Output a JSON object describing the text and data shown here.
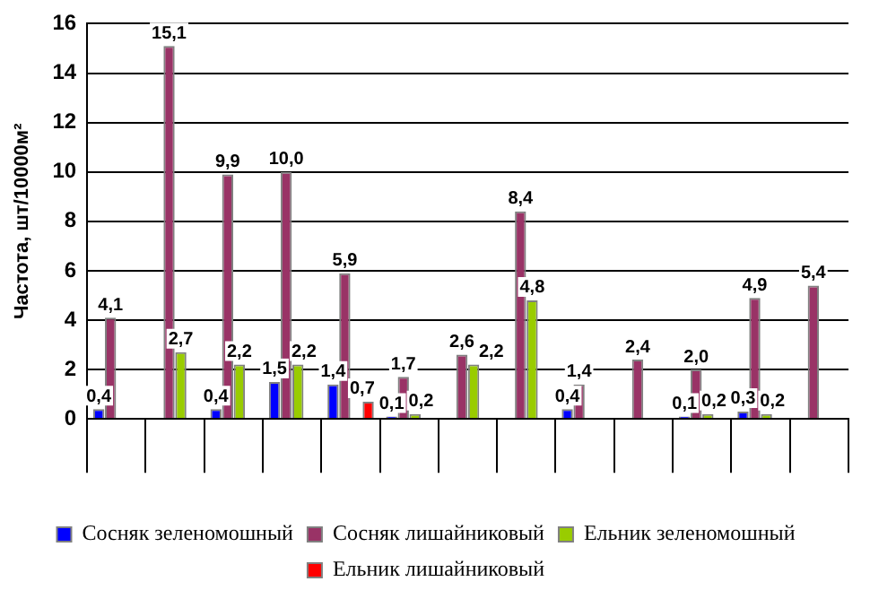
{
  "chart_data": {
    "type": "bar",
    "ylabel": "Частота, шт/10000м²",
    "categories": [
      null,
      null,
      null,
      null,
      null,
      null,
      null,
      null,
      null,
      null,
      null,
      null,
      null
    ],
    "series": [
      {
        "name": "Сосняк зеленомошный",
        "color": "#0000ff",
        "values": [
          0.4,
          null,
          0.4,
          1.5,
          1.4,
          0.1,
          null,
          null,
          0.4,
          null,
          0.1,
          0.3,
          null
        ],
        "value_labels": [
          "0,4",
          null,
          "0,4",
          "1,5",
          "1,4",
          "0,1",
          null,
          null,
          "0,4",
          null,
          "0,1",
          "0,3",
          null
        ]
      },
      {
        "name": "Сосняк лишайниковый",
        "color": "#993366",
        "values": [
          4.1,
          15.1,
          9.9,
          10.0,
          5.9,
          1.7,
          2.6,
          8.4,
          1.4,
          2.4,
          2.0,
          4.9,
          5.4
        ],
        "value_labels": [
          "4,1",
          "15,1",
          "9,9",
          "10,0",
          "5,9",
          "1,7",
          "2,6",
          "8,4",
          "1,4",
          "2,4",
          "2,0",
          "4,9",
          "5,4"
        ]
      },
      {
        "name": "Ельник зеленомошный",
        "color": "#99cc00",
        "values": [
          null,
          2.7,
          2.2,
          2.2,
          null,
          0.2,
          2.2,
          4.8,
          null,
          null,
          0.2,
          0.2,
          null
        ],
        "value_labels": [
          null,
          "2,7",
          "2,2",
          "2,2",
          null,
          "0,2",
          "2,2",
          "4,8",
          null,
          null,
          "0,2",
          "0,2",
          null
        ]
      },
      {
        "name": "Ельник лишайниковый",
        "color": "#ff0000",
        "values": [
          null,
          null,
          null,
          null,
          0.7,
          null,
          null,
          null,
          null,
          null,
          null,
          null,
          null
        ],
        "value_labels": [
          null,
          null,
          null,
          null,
          "0,7",
          null,
          null,
          null,
          null,
          null,
          null,
          null,
          null
        ]
      }
    ],
    "ylim": [
      0,
      16
    ],
    "yticks": [
      0,
      2,
      4,
      6,
      8,
      10,
      12,
      14,
      16
    ],
    "grid": "y",
    "legend": "bottom"
  }
}
